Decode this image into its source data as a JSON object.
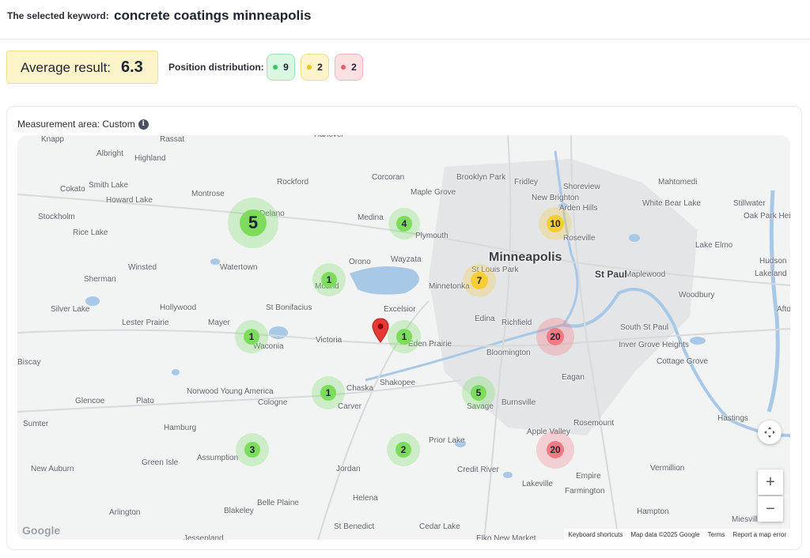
{
  "header": {
    "keyword_label": "The selected keyword:",
    "keyword_value": "concrete coatings minneapolis"
  },
  "summary": {
    "average_label": "Average result:",
    "average_value": "6.3",
    "distribution_label": "Position distribution:",
    "distribution": [
      {
        "color": "#3bc463",
        "count": "9"
      },
      {
        "color": "#f1c21b",
        "count": "2"
      },
      {
        "color": "#f25c67",
        "count": "2"
      }
    ]
  },
  "map": {
    "area_label": "Measurement area: Custom",
    "info_icon": "i",
    "towns": [
      "Knapp",
      "Rassat",
      "Albright",
      "Highland",
      "Hanover",
      "Corcoran",
      "Brooklyn Park",
      "Fridley",
      "Shoreview",
      "Mahtomedi",
      "Cokato",
      "Smith Lake",
      "Montrose",
      "Rockford",
      "Maple Grove",
      "New Brighton",
      "Arden Hills",
      "White Bear Lake",
      "Stillwater",
      "Howard Lake",
      "Stockholm",
      "Delano",
      "Medina",
      "Plymouth",
      "Roseville",
      "Oak Park Heights",
      "Rice Lake",
      "Orono",
      "Wayzata",
      "Lake Elmo",
      "Winsted",
      "Watertown",
      "Minnetonka",
      "St Louis Park",
      "Hudson",
      "Sherman",
      "Mound",
      "Maplewood",
      "Lakeland",
      "Woodbury",
      "Silver Lake",
      "Hollywood",
      "St Bonifacius",
      "Excelsior",
      "Afton",
      "Lester Prairie",
      "Mayer",
      "Edina",
      "Richfield",
      "South St Paul",
      "Waconia",
      "Victoria",
      "Eden Prairie",
      "Inver Grove Heights",
      "Biscay",
      "Bloomington",
      "Cottage Grove",
      "Chaska",
      "Shakopee",
      "Eagan",
      "Norwood Young America",
      "Plato",
      "Glencoe",
      "Cologne",
      "Carver",
      "Savage",
      "Burnsville",
      "Sumter",
      "Hastings",
      "Hamburg",
      "Apple Valley",
      "Rosemount",
      "Prior Lake",
      "Green Isle",
      "Assumption",
      "New Auburn",
      "Jordan",
      "Credit River",
      "Vermillion",
      "Empire",
      "Lakeville",
      "Farmington",
      "Belle Plaine",
      "Helena",
      "Arlington",
      "Blakeley",
      "St Benedict",
      "Cedar Lake",
      "Hampton",
      "Miesville",
      "Jessenland",
      "Elko New Market"
    ],
    "major_city": "Minneapolis",
    "mid_city": "St Paul",
    "grid_results": [
      {
        "rank": "5",
        "level": "green"
      },
      {
        "rank": "4",
        "level": "green"
      },
      {
        "rank": "10",
        "level": "yellow"
      },
      {
        "rank": "1",
        "level": "green"
      },
      {
        "rank": "7",
        "level": "yellow"
      },
      {
        "rank": "1",
        "level": "green"
      },
      {
        "rank": "1",
        "level": "green"
      },
      {
        "rank": "20",
        "level": "red"
      },
      {
        "rank": "1",
        "level": "green"
      },
      {
        "rank": "5",
        "level": "green"
      },
      {
        "rank": "3",
        "level": "green"
      },
      {
        "rank": "2",
        "level": "green"
      },
      {
        "rank": "20",
        "level": "red"
      }
    ],
    "controls": {
      "zoom_in": "+",
      "zoom_out": "−"
    },
    "google_logo": "Google",
    "attribution": {
      "shortcuts": "Keyboard shortcuts",
      "data": "Map data ©2025 Google",
      "terms": "Terms",
      "report": "Report a map error"
    }
  },
  "colors": {
    "green": "#7ddc5c",
    "yellow": "#f6cd36",
    "red": "#f27a82",
    "accent_bg": "#fdf4c9"
  }
}
